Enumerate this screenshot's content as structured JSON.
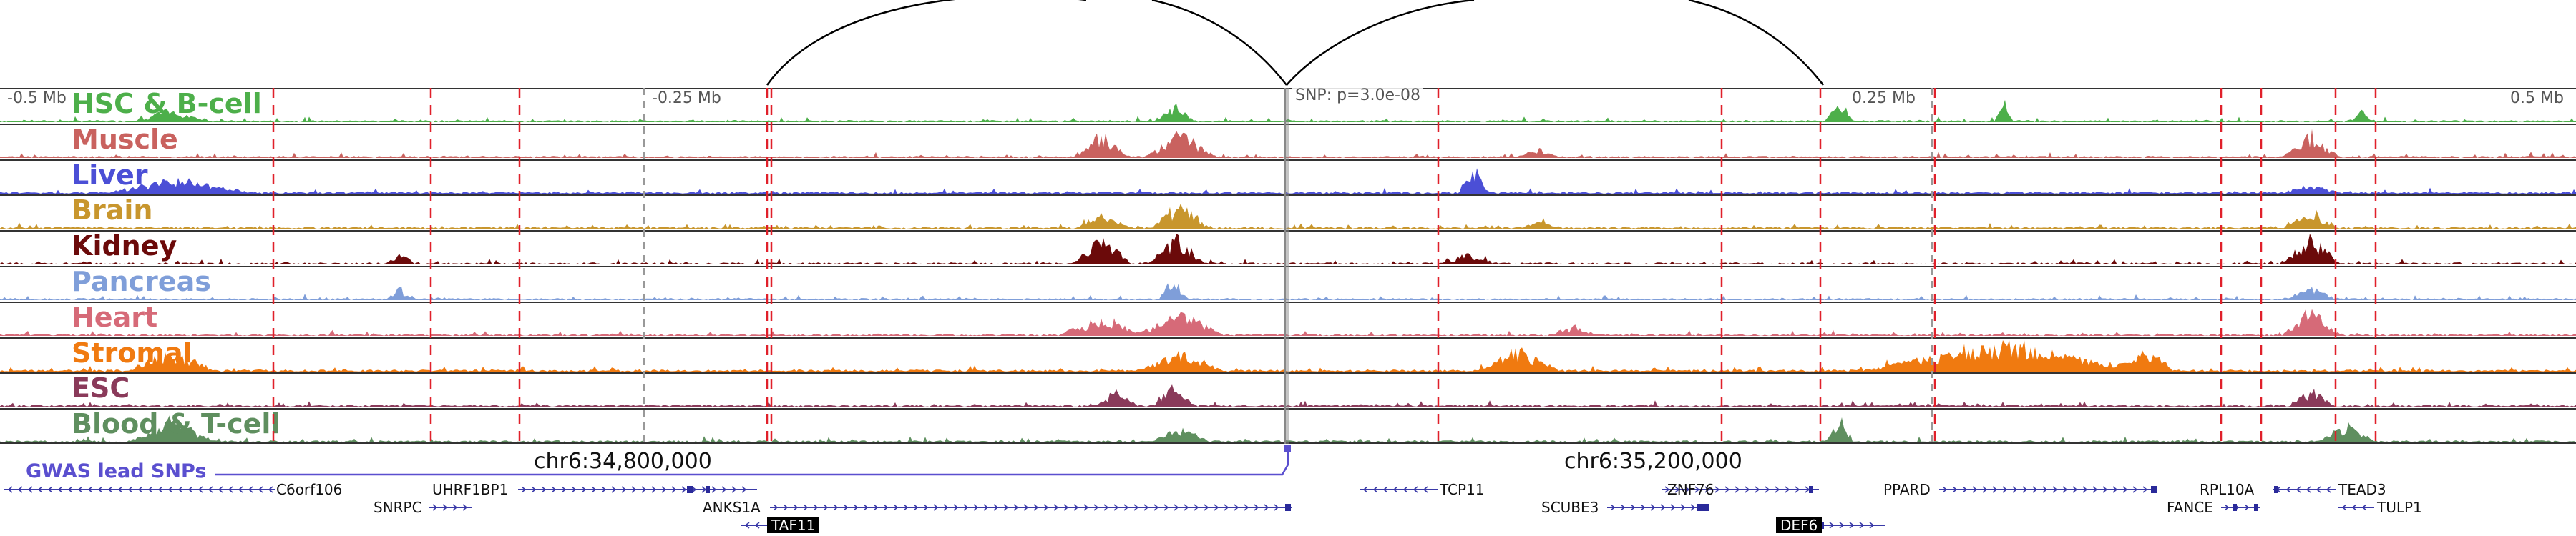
{
  "browser": {
    "type": "genome-browser"
  },
  "axis": {
    "ticks": [
      "-0.5 Mb",
      "-0.25 Mb",
      "SNP: p=3.0e-08",
      "0.25 Mb",
      "0.5 Mb"
    ],
    "chr_labels": [
      "chr6:34,800,000",
      "chr6:35,200,000"
    ]
  },
  "tracks": [
    {
      "name": "HSC & B-cell",
      "color": "#4daf4a"
    },
    {
      "name": "Muscle",
      "color": "#c9625f"
    },
    {
      "name": "Liver",
      "color": "#4b4fd6"
    },
    {
      "name": "Brain",
      "color": "#c8962d"
    },
    {
      "name": "Kidney",
      "color": "#6b0a0a"
    },
    {
      "name": "Pancreas",
      "color": "#7f9ed9"
    },
    {
      "name": "Heart",
      "color": "#d66a78"
    },
    {
      "name": "Stromal",
      "color": "#f07a10"
    },
    {
      "name": "ESC",
      "color": "#8a3a5a"
    },
    {
      "name": "Blood & T-cell",
      "color": "#5f8f5f"
    }
  ],
  "gwas": {
    "label": "GWAS lead SNPs",
    "color": "#5a4fcf"
  },
  "genes": [
    {
      "name": "C6orf106",
      "boxed": false
    },
    {
      "name": "UHRF1BP1",
      "boxed": false
    },
    {
      "name": "SNRPC",
      "boxed": false
    },
    {
      "name": "ANKS1A",
      "boxed": false
    },
    {
      "name": "TAF11",
      "boxed": true
    },
    {
      "name": "TCP11",
      "boxed": false
    },
    {
      "name": "ZNF76",
      "boxed": false
    },
    {
      "name": "SCUBE3",
      "boxed": false
    },
    {
      "name": "DEF6",
      "boxed": true
    },
    {
      "name": "PPARD",
      "boxed": false
    },
    {
      "name": "RPL10A",
      "boxed": false
    },
    {
      "name": "TEAD3",
      "boxed": false
    },
    {
      "name": "FANCE",
      "boxed": false
    },
    {
      "name": "TULP1",
      "boxed": false
    }
  ]
}
